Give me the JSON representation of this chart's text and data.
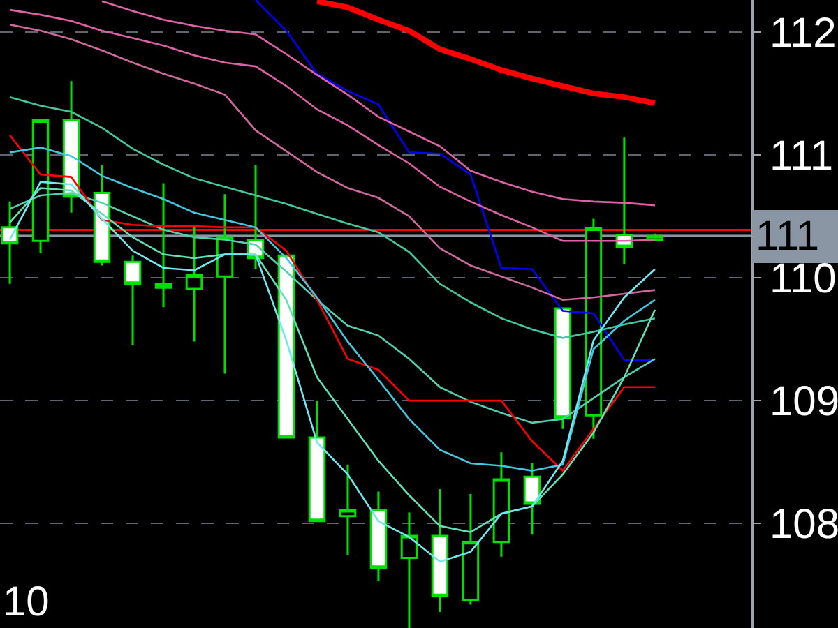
{
  "chart_data": {
    "type": "candlestick",
    "categories": [
      null,
      null,
      null,
      null,
      null,
      null,
      null,
      null,
      null,
      null,
      null,
      null,
      null,
      null,
      null,
      null,
      null,
      null,
      null,
      null,
      null,
      null
    ],
    "ohlc": [
      [
        110.41,
        110.62,
        109.95,
        110.28
      ],
      [
        110.3,
        111.28,
        110.2,
        111.28
      ],
      [
        111.28,
        111.6,
        110.53,
        110.66
      ],
      [
        110.69,
        110.92,
        110.1,
        110.13
      ],
      [
        110.13,
        110.18,
        109.45,
        109.95
      ],
      [
        109.95,
        110.77,
        109.76,
        109.92
      ],
      [
        109.91,
        110.42,
        109.48,
        110.02
      ],
      [
        110.01,
        110.68,
        109.22,
        110.33
      ],
      [
        110.31,
        110.92,
        110.07,
        110.16
      ],
      [
        110.18,
        110.18,
        108.7,
        108.7
      ],
      [
        108.7,
        109.0,
        108.02,
        108.02
      ],
      [
        108.06,
        108.48,
        107.74,
        108.11
      ],
      [
        108.11,
        108.26,
        107.53,
        107.64
      ],
      [
        107.72,
        108.09,
        107.15,
        107.9
      ],
      [
        107.9,
        108.28,
        107.28,
        107.41
      ],
      [
        107.38,
        108.24,
        107.34,
        107.85
      ],
      [
        107.85,
        108.58,
        107.73,
        108.36
      ],
      [
        108.38,
        108.49,
        107.91,
        108.16
      ],
      [
        109.75,
        109.75,
        108.77,
        108.86
      ],
      [
        108.88,
        110.48,
        108.69,
        110.4
      ],
      [
        110.35,
        111.14,
        110.11,
        110.25
      ],
      [
        110.31,
        110.36,
        110.3,
        110.34
      ]
    ],
    "series": [
      {
        "type": "line",
        "color": "#ff0000",
        "values": [
          null,
          null,
          null,
          null,
          null,
          null,
          null,
          null,
          null,
          null,
          112.25,
          112.2,
          112.1,
          112.01,
          111.86,
          111.78,
          111.69,
          111.62,
          111.56,
          111.5,
          111.47,
          111.42
        ]
      },
      {
        "type": "line",
        "color": "#0000ff",
        "values": [
          null,
          null,
          null,
          null,
          null,
          null,
          null,
          null,
          112.26,
          112.01,
          111.66,
          111.52,
          111.41,
          111.02,
          111.01,
          110.84,
          110.08,
          110.07,
          109.73,
          109.71,
          109.33,
          109.33
        ]
      },
      {
        "type": "line",
        "color": "#e060a8",
        "values": [
          null,
          null,
          null,
          112.25,
          112.17,
          112.1,
          112.05,
          112.01,
          111.98,
          111.82,
          111.65,
          111.49,
          111.31,
          111.19,
          111.07,
          110.87,
          110.78,
          110.7,
          110.64,
          110.62,
          110.61,
          110.59
        ]
      },
      {
        "type": "line",
        "color": "#e060a8",
        "values": [
          112.18,
          112.14,
          112.09,
          112.01,
          111.95,
          111.89,
          111.81,
          111.75,
          111.72,
          111.56,
          111.37,
          111.24,
          111.08,
          110.93,
          110.74,
          110.62,
          110.51,
          110.41,
          110.3,
          110.3,
          110.3,
          110.31
        ]
      },
      {
        "type": "line",
        "color": "#d068a0",
        "values": [
          112.06,
          112.01,
          111.94,
          111.85,
          111.75,
          111.66,
          111.58,
          111.49,
          111.2,
          111.03,
          110.86,
          110.73,
          110.65,
          110.5,
          110.24,
          110.1,
          110.01,
          109.92,
          109.82,
          109.84,
          109.87,
          109.9
        ]
      },
      {
        "type": "line",
        "color": "#40c8a0",
        "values": [
          111.47,
          111.4,
          111.35,
          111.22,
          111.05,
          110.92,
          110.81,
          110.74,
          110.67,
          110.6,
          110.52,
          110.44,
          110.37,
          110.21,
          109.95,
          109.8,
          109.67,
          109.58,
          109.51,
          109.56,
          109.62,
          109.67
        ]
      },
      {
        "type": "line",
        "color": "#50d0b0",
        "values": [
          110.56,
          110.67,
          110.69,
          110.61,
          110.5,
          110.39,
          110.33,
          110.31,
          110.27,
          110.05,
          109.82,
          109.61,
          109.53,
          109.34,
          109.11,
          108.99,
          108.9,
          108.82,
          108.85,
          109.02,
          109.19,
          109.34
        ]
      },
      {
        "type": "line",
        "color": "#ff0000",
        "values": [
          111.16,
          110.84,
          110.82,
          110.47,
          110.43,
          110.42,
          110.42,
          110.41,
          110.41,
          110.22,
          109.82,
          109.34,
          109.25,
          109.0,
          109.0,
          109.0,
          109.0,
          108.67,
          108.43,
          108.77,
          109.11,
          109.11
        ]
      },
      {
        "type": "line",
        "color": "#40c8e0",
        "values": [
          111.02,
          111.06,
          110.99,
          110.83,
          110.73,
          110.64,
          110.53,
          110.47,
          110.41,
          110.16,
          109.84,
          109.48,
          109.17,
          108.85,
          108.6,
          108.49,
          108.47,
          108.43,
          108.48,
          109.42,
          109.65,
          109.82
        ]
      },
      {
        "type": "line",
        "color": "#60e0b8",
        "values": [
          110.45,
          110.73,
          110.71,
          110.52,
          110.33,
          110.19,
          110.16,
          110.19,
          110.19,
          109.82,
          109.19,
          108.85,
          108.51,
          108.23,
          107.98,
          107.93,
          108.08,
          108.14,
          108.4,
          108.74,
          109.19,
          109.74
        ]
      },
      {
        "type": "line",
        "color": "#70e8f0",
        "values": [
          110.31,
          110.78,
          110.76,
          110.48,
          110.22,
          110.08,
          110.06,
          110.19,
          110.19,
          109.49,
          108.66,
          108.4,
          108.02,
          107.89,
          107.69,
          107.77,
          108.08,
          108.14,
          108.51,
          109.49,
          109.84,
          110.07
        ]
      }
    ],
    "ylim": [
      107.15,
      112.26
    ],
    "yticks": [
      108,
      109,
      110,
      111,
      112
    ],
    "tick_labels": "y",
    "grid": "y",
    "ref_lines": [
      {
        "axis": "y",
        "value": 110.39,
        "color": "#ff0000",
        "line_style": "solid"
      },
      {
        "axis": "y",
        "value": 110.34,
        "color": "#8a96a4",
        "line_style": "solid"
      }
    ],
    "annotations": [
      "10",
      "111"
    ]
  }
}
